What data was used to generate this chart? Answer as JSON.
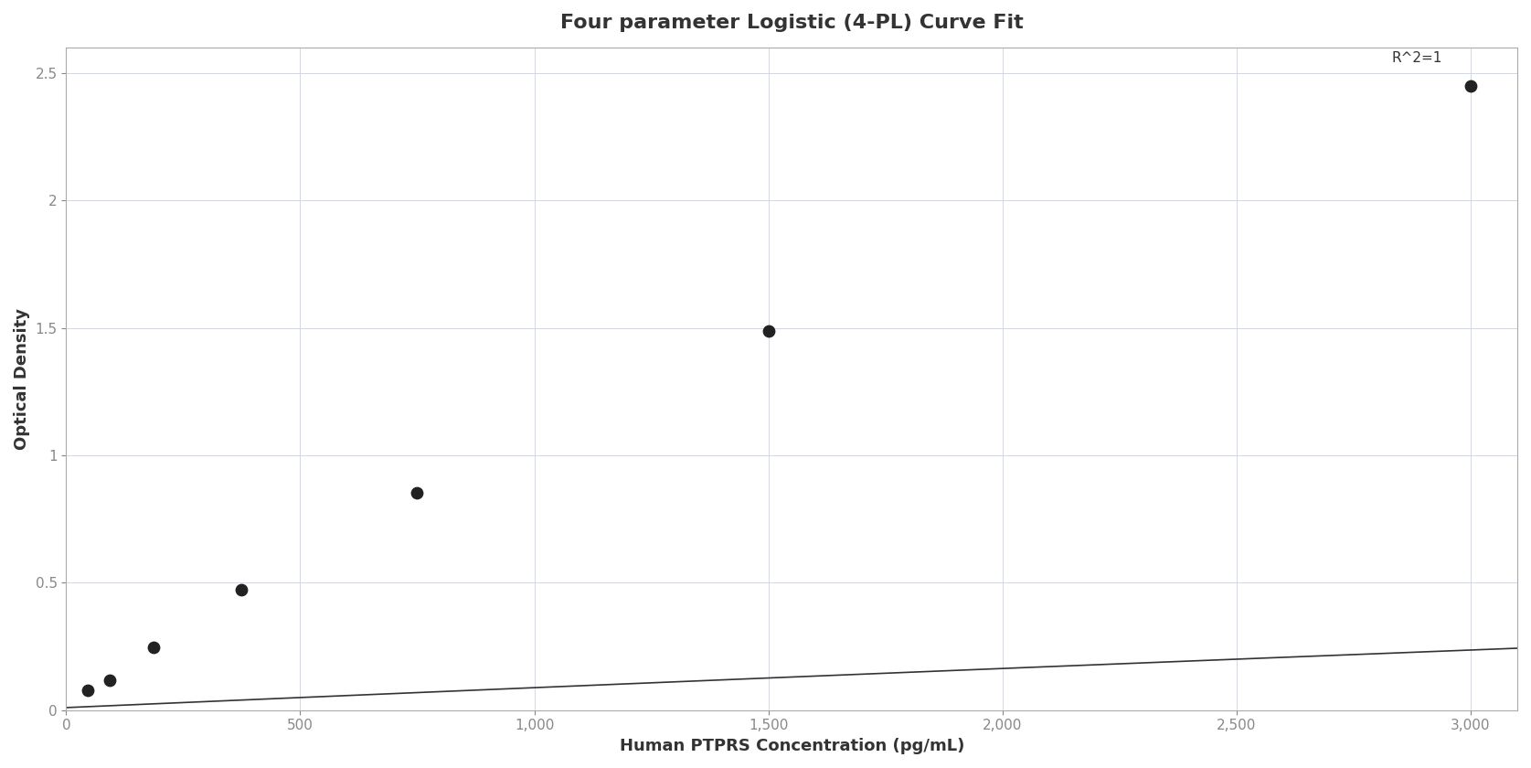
{
  "title": "Four parameter Logistic (4-PL) Curve Fit",
  "xlabel": "Human PTPRS Concentration (pg/mL)",
  "ylabel": "Optical Density",
  "r2_label": "R^2=1",
  "data_points_x": [
    46.875,
    93.75,
    187.5,
    375,
    750,
    1500,
    3000
  ],
  "data_points_y": [
    0.077,
    0.118,
    0.248,
    0.471,
    0.853,
    1.488,
    2.45
  ],
  "xlim": [
    0,
    3100
  ],
  "ylim": [
    0,
    2.6
  ],
  "xticks": [
    0,
    500,
    1000,
    1500,
    2000,
    2500,
    3000
  ],
  "yticks": [
    0,
    0.5,
    1.0,
    1.5,
    2.0,
    2.5
  ],
  "background_color": "#ffffff",
  "grid_color": "#cccccc",
  "line_color": "#333333",
  "dot_color": "#222222",
  "dot_size": 80,
  "title_fontsize": 16,
  "label_fontsize": 13,
  "tick_fontsize": 11,
  "annotation_fontsize": 11,
  "figsize": [
    16.75,
    8.4
  ],
  "dpi": 100
}
